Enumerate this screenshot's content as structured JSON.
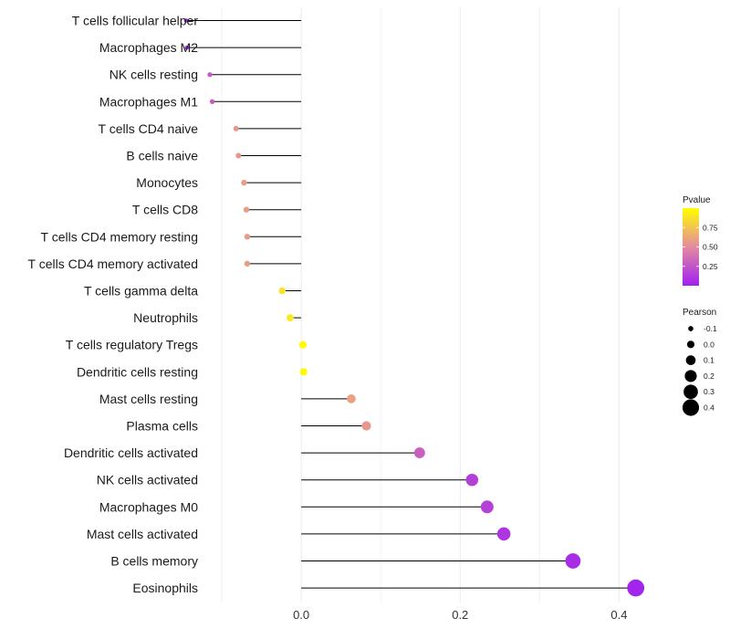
{
  "chart_data": {
    "type": "lollipop",
    "x_ticks": [
      0.0,
      0.2,
      0.4
    ],
    "x_tick_labels": [
      "0.0",
      "0.2",
      "0.4"
    ],
    "xlim": [
      -0.115,
      0.465
    ],
    "x_minor_grid": [
      -0.1,
      0.1,
      0.3
    ],
    "legend": {
      "color_title": "Pvalue",
      "color_ticks": [
        0.75,
        0.5,
        0.25
      ],
      "color_tick_labels": [
        "0.75",
        "0.50",
        "0.25"
      ],
      "color_low": "#a020f0",
      "color_high": "#ffff00",
      "size_title": "Pearson",
      "size_labels": [
        "-0.1",
        "0.0",
        "0.1",
        "0.2",
        "0.3",
        "0.4"
      ],
      "size_values": [
        -0.1,
        0.0,
        0.1,
        0.2,
        0.3,
        0.4
      ]
    },
    "categories": [
      "T cells follicular helper",
      "Macrophages M2",
      "NK cells resting",
      "Macrophages M1",
      "T cells CD4 naive",
      "B cells naive",
      "Monocytes",
      "T cells CD8",
      "T cells CD4 memory resting",
      "T cells CD4 memory activated",
      "T cells gamma delta",
      "Neutrophils",
      "T cells regulatory  Tregs ",
      "Dendritic cells resting",
      "Mast cells resting",
      "Plasma cells",
      "Dendritic cells activated",
      "NK cells activated",
      "Macrophages M0",
      "Mast cells activated",
      "B cells memory",
      "Eosinophils"
    ],
    "pearson": [
      -0.145,
      -0.144,
      -0.115,
      -0.112,
      -0.082,
      -0.079,
      -0.072,
      -0.069,
      -0.068,
      -0.068,
      -0.024,
      -0.014,
      0.002,
      0.003,
      0.063,
      0.082,
      0.149,
      0.215,
      0.234,
      0.255,
      0.342,
      0.421
    ],
    "pvalue": [
      0.05,
      0.05,
      0.28,
      0.28,
      0.55,
      0.55,
      0.58,
      0.58,
      0.58,
      0.58,
      0.88,
      0.9,
      0.98,
      0.98,
      0.6,
      0.55,
      0.3,
      0.15,
      0.15,
      0.1,
      0.06,
      0.02
    ]
  }
}
